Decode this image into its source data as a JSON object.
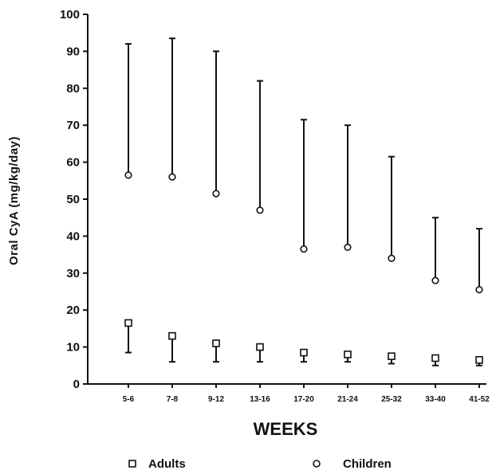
{
  "chart_data": {
    "type": "scatter",
    "title": "",
    "xlabel": "WEEKS",
    "ylabel": "Oral CyA (mg/kg/day)",
    "ylim": [
      0,
      100
    ],
    "y_ticks": [
      0,
      10,
      20,
      30,
      40,
      50,
      60,
      70,
      80,
      90,
      100
    ],
    "categories": [
      "5-6",
      "7-8",
      "9-12",
      "13-16",
      "17-20",
      "21-24",
      "25-32",
      "33-40",
      "41-52"
    ],
    "legend_position": "bottom",
    "grid": false,
    "series": [
      {
        "name": "Adults",
        "marker": "square",
        "values": [
          16.5,
          13,
          11,
          10,
          8.5,
          8,
          7.5,
          7,
          6.5
        ],
        "error_low": [
          8.5,
          6,
          6,
          6,
          6,
          6,
          5.5,
          5,
          5
        ]
      },
      {
        "name": "Children",
        "marker": "circle",
        "values": [
          56.5,
          56,
          51.5,
          47,
          36.5,
          37,
          34,
          28,
          25.5
        ],
        "error_high": [
          92,
          93.5,
          90,
          82,
          71.5,
          70,
          61.5,
          45,
          42
        ]
      }
    ]
  }
}
